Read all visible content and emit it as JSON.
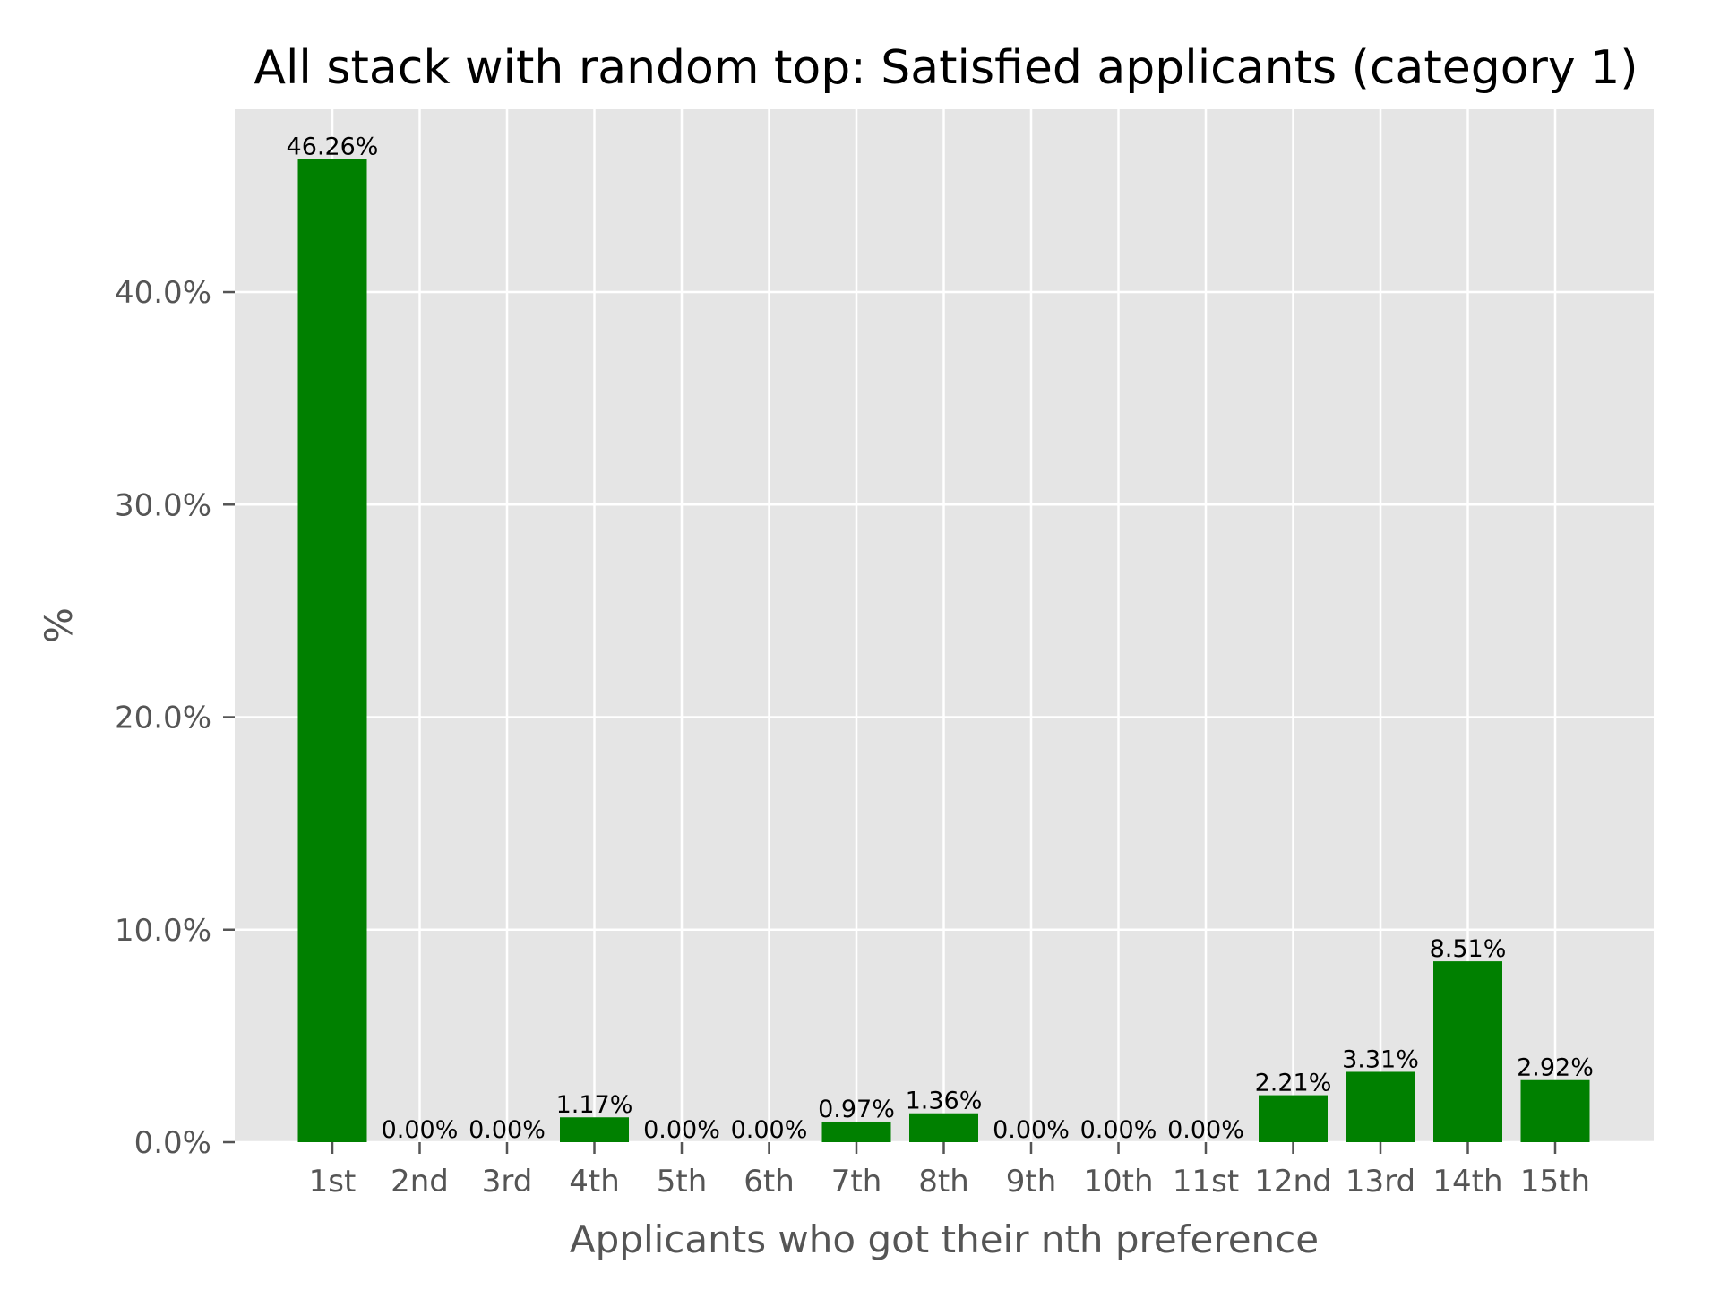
{
  "chart_data": {
    "type": "bar",
    "title": "All stack with random top: Satisfied applicants (category 1)",
    "xlabel": "Applicants who got their nth preference",
    "ylabel": "%",
    "categories": [
      "1st",
      "2nd",
      "3rd",
      "4th",
      "5th",
      "6th",
      "7th",
      "8th",
      "9th",
      "10th",
      "11st",
      "12nd",
      "13rd",
      "14th",
      "15th"
    ],
    "values": [
      46.26,
      0.0,
      0.0,
      1.17,
      0.0,
      0.0,
      0.97,
      1.36,
      0.0,
      0.0,
      0.0,
      2.21,
      3.31,
      8.51,
      2.92
    ],
    "data_labels": [
      "46.26%",
      "0.00%",
      "0.00%",
      "1.17%",
      "0.00%",
      "0.00%",
      "0.97%",
      "1.36%",
      "0.00%",
      "0.00%",
      "0.00%",
      "2.21%",
      "3.31%",
      "8.51%",
      "2.92%"
    ],
    "yticks": [
      0,
      10,
      20,
      30,
      40
    ],
    "ytick_labels": [
      "0.0%",
      "10.0%",
      "20.0%",
      "30.0%",
      "40.0%"
    ],
    "ylim": [
      0,
      48.6
    ],
    "grid": true,
    "legend": "none",
    "colors": {
      "bar": "#008000",
      "plot_background": "#e5e5e5",
      "grid": "#ffffff",
      "tick_color": "#555555"
    }
  }
}
